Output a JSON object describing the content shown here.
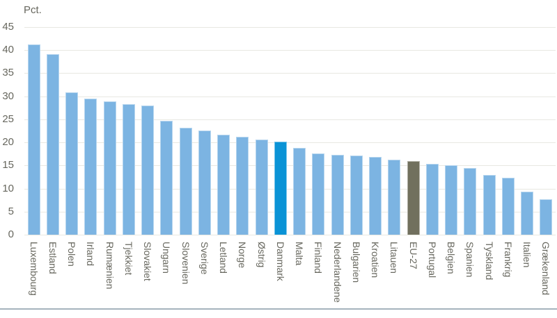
{
  "chart_data": {
    "type": "bar",
    "unit_label": "Pct.",
    "categories": [
      "Luxembourg",
      "Estland",
      "Polen",
      "Irland",
      "Rumænien",
      "Tjekkiet",
      "Slovakiet",
      "Ungarn",
      "Slovenien",
      "Sverige",
      "Letland",
      "Norge",
      "Østrig",
      "Danmark",
      "Malta",
      "Finland",
      "Nederlandene",
      "Bulgarien",
      "Kroatien",
      "Litauen",
      "EU-27",
      "Portugal",
      "Belgien",
      "Spanien",
      "Tyskland",
      "Frankrig",
      "Italien",
      "Grækenland"
    ],
    "values": [
      41.2,
      39.1,
      30.8,
      29.4,
      28.8,
      28.2,
      28.0,
      24.7,
      23.2,
      22.6,
      21.7,
      21.2,
      20.6,
      20.2,
      18.8,
      17.6,
      17.3,
      17.1,
      16.8,
      16.3,
      15.9,
      15.4,
      15.1,
      14.4,
      12.9,
      12.4,
      9.3,
      7.7
    ],
    "yticks": [
      0,
      5,
      10,
      15,
      20,
      25,
      30,
      35,
      40,
      45
    ],
    "ylim": [
      0,
      45
    ],
    "grid": "on",
    "legend": "none",
    "xlabel": "",
    "ylabel": "Pct.",
    "colors": {
      "bar_default": "#7cb4e2",
      "bar_danmark": "#0a93d6",
      "bar_eu27": "#71705e",
      "gridline": "#e8e8e2",
      "axis_text": "#67675e",
      "bottom_divider": "#a5b3bd"
    },
    "highlighted_bars": [
      {
        "category": "Danmark",
        "color_key": "bar_danmark"
      },
      {
        "category": "EU-27",
        "color_key": "bar_eu27"
      }
    ]
  }
}
